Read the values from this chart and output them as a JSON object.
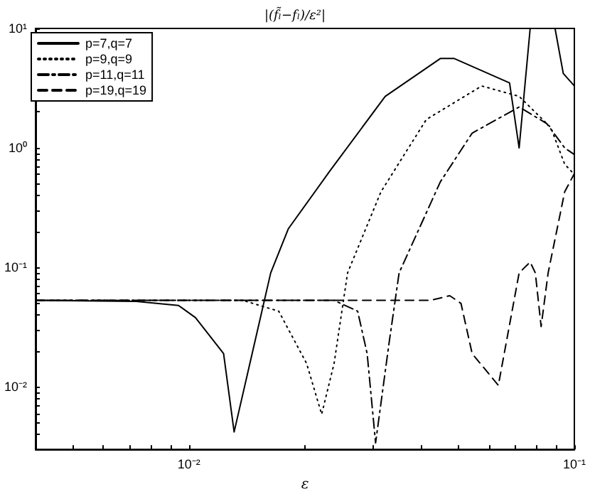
{
  "chart_data": {
    "type": "line",
    "title": "|(f̃ₗ−fₗ)/ε²|",
    "xlabel": "ε",
    "log": "xy",
    "xlim": [
      0.004,
      0.1
    ],
    "ylim": [
      0.003,
      10
    ],
    "xticks": [
      {
        "value": 0.005,
        "label": null
      },
      {
        "value": 0.006,
        "label": null
      },
      {
        "value": 0.007,
        "label": null
      },
      {
        "value": 0.008,
        "label": null
      },
      {
        "value": 0.009,
        "label": null
      },
      {
        "value": 0.01,
        "label": "10⁻²"
      },
      {
        "value": 0.02,
        "label": null
      },
      {
        "value": 0.03,
        "label": null
      },
      {
        "value": 0.04,
        "label": null
      },
      {
        "value": 0.05,
        "label": null
      },
      {
        "value": 0.06,
        "label": null
      },
      {
        "value": 0.07,
        "label": null
      },
      {
        "value": 0.08,
        "label": null
      },
      {
        "value": 0.09,
        "label": null
      },
      {
        "value": 0.1,
        "label": "10⁻¹"
      }
    ],
    "yticks": [
      {
        "value": 0.004,
        "label": null
      },
      {
        "value": 0.005,
        "label": null
      },
      {
        "value": 0.006,
        "label": null
      },
      {
        "value": 0.007,
        "label": null
      },
      {
        "value": 0.008,
        "label": null
      },
      {
        "value": 0.009,
        "label": null
      },
      {
        "value": 0.01,
        "label": "10⁻²"
      },
      {
        "value": 0.02,
        "label": null
      },
      {
        "value": 0.03,
        "label": null
      },
      {
        "value": 0.04,
        "label": null
      },
      {
        "value": 0.05,
        "label": null
      },
      {
        "value": 0.06,
        "label": null
      },
      {
        "value": 0.07,
        "label": null
      },
      {
        "value": 0.08,
        "label": null
      },
      {
        "value": 0.09,
        "label": null
      },
      {
        "value": 0.1,
        "label": "10⁻¹"
      },
      {
        "value": 0.2,
        "label": null
      },
      {
        "value": 0.3,
        "label": null
      },
      {
        "value": 0.4,
        "label": null
      },
      {
        "value": 0.5,
        "label": null
      },
      {
        "value": 0.6,
        "label": null
      },
      {
        "value": 0.7,
        "label": null
      },
      {
        "value": 0.8,
        "label": null
      },
      {
        "value": 0.9,
        "label": null
      },
      {
        "value": 1,
        "label": "10⁰"
      },
      {
        "value": 2,
        "label": null
      },
      {
        "value": 3,
        "label": null
      },
      {
        "value": 4,
        "label": null
      },
      {
        "value": 5,
        "label": null
      },
      {
        "value": 6,
        "label": null
      },
      {
        "value": 7,
        "label": null
      },
      {
        "value": 8,
        "label": null
      },
      {
        "value": 9,
        "label": null
      },
      {
        "value": 10,
        "label": "10¹"
      }
    ],
    "grid": false,
    "legend": "top left",
    "marker": "none",
    "series": [
      {
        "name": "p=7,q=7",
        "color": "#000000",
        "line_style": "solid",
        "x": [
          0.004,
          0.0073,
          0.0094,
          0.0104,
          0.0123,
          0.0131,
          0.0163,
          0.0181,
          0.0232,
          0.0323,
          0.0449,
          0.0488,
          0.0679,
          0.0719,
          0.0768,
          0.083,
          0.0891,
          0.0936,
          0.1
        ],
        "values": [
          0.053,
          0.052,
          0.048,
          0.038,
          0.019,
          0.0042,
          0.09,
          0.21,
          0.64,
          2.7,
          5.6,
          5.6,
          3.5,
          1.0,
          10,
          null,
          10,
          4.2,
          3.3
        ]
      },
      {
        "name": "p=9,q=9",
        "color": "#000000",
        "line_style": "dotted",
        "x": [
          0.004,
          0.0138,
          0.0171,
          0.0202,
          0.0221,
          0.0238,
          0.0258,
          0.0315,
          0.0413,
          0.0575,
          0.0719,
          0.0869,
          0.0944,
          0.1
        ],
        "values": [
          0.053,
          0.053,
          0.043,
          0.0157,
          0.0059,
          0.0157,
          0.09,
          0.43,
          1.73,
          3.3,
          2.7,
          1.48,
          0.73,
          0.6
        ]
      },
      {
        "name": "p=11,q=11",
        "color": "#000000",
        "line_style": "dashdot",
        "x": [
          0.004,
          0.0238,
          0.0274,
          0.029,
          0.0305,
          0.0331,
          0.0351,
          0.0449,
          0.0543,
          0.0719,
          0.0848,
          0.0944,
          0.1
        ],
        "values": [
          0.053,
          0.053,
          0.043,
          0.019,
          0.0034,
          0.024,
          0.09,
          0.52,
          1.33,
          2.2,
          1.6,
          1.0,
          0.88
        ]
      },
      {
        "name": "p=19,q=19",
        "color": "#000000",
        "line_style": "dashed",
        "x": [
          0.004,
          0.0424,
          0.0475,
          0.0508,
          0.0543,
          0.0635,
          0.0719,
          0.0768,
          0.0792,
          0.082,
          0.0855,
          0.0944,
          0.1
        ],
        "values": [
          0.053,
          0.053,
          0.058,
          0.05,
          0.019,
          0.0103,
          0.09,
          0.111,
          0.09,
          0.032,
          0.09,
          0.43,
          0.61
        ]
      }
    ]
  }
}
